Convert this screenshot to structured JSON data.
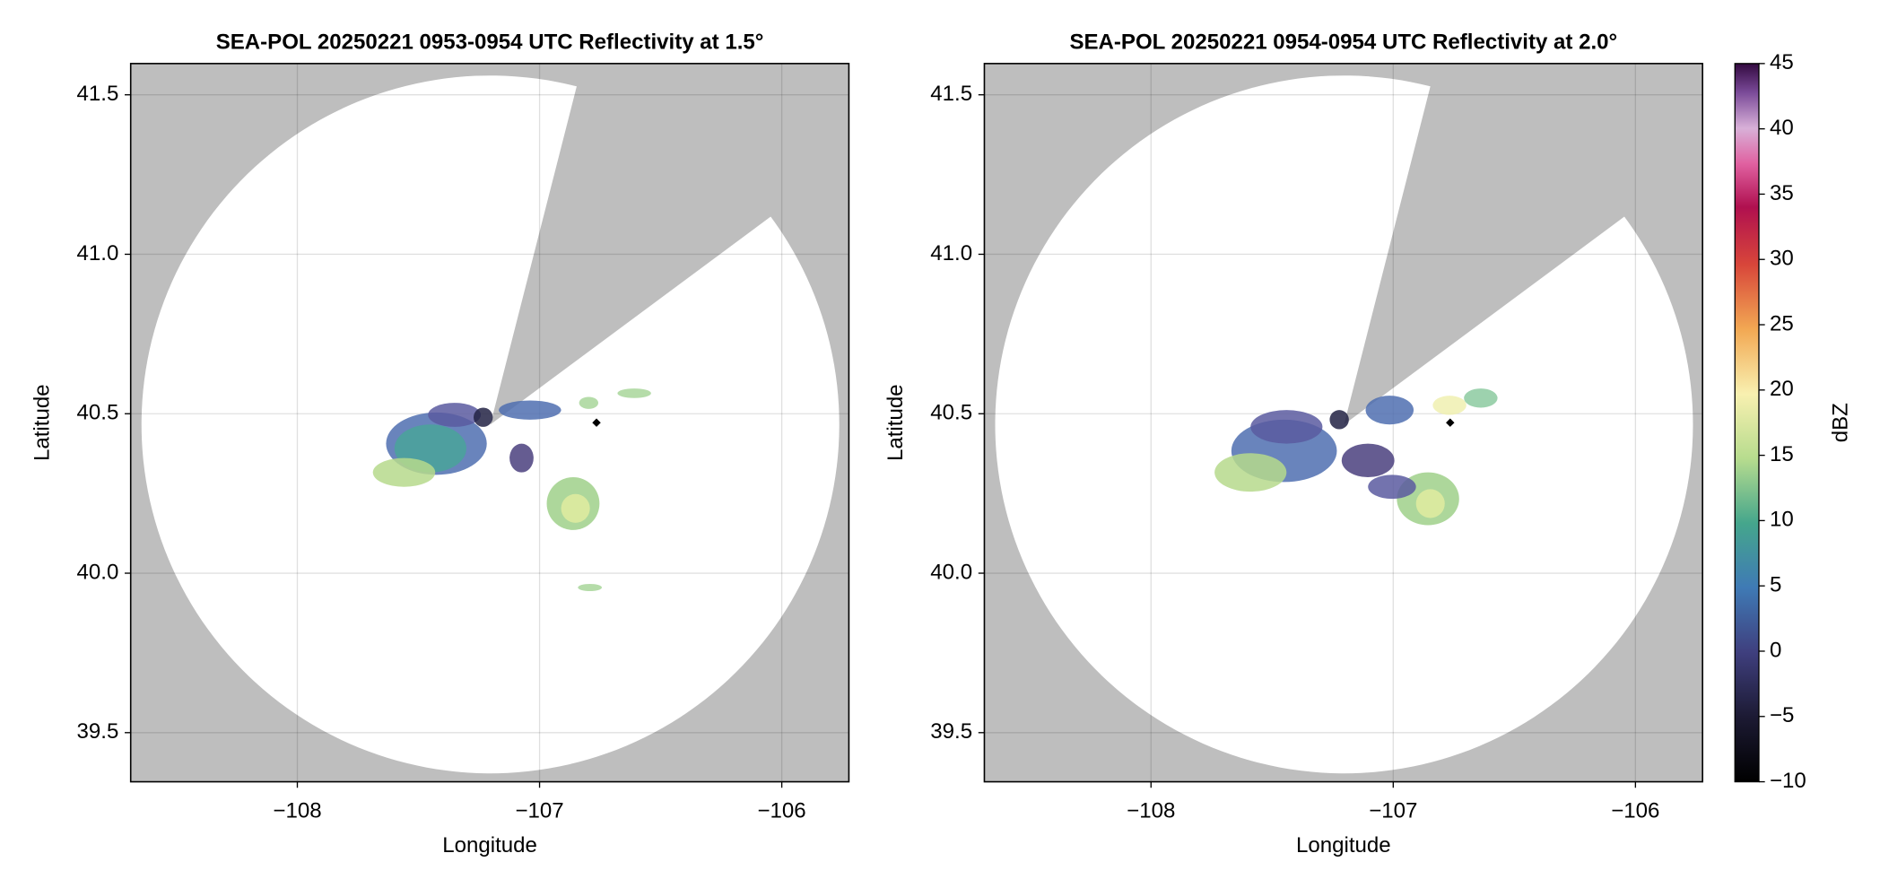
{
  "chart_data": [
    {
      "type": "radar-map",
      "title": "SEA-POL 20250221 0953-0954 UTC Reflectivity at 1.5°",
      "xlabel": "Longitude",
      "ylabel": "Latitude",
      "xlim": [
        -108.688,
        -105.723
      ],
      "ylim": [
        39.346,
        41.598
      ],
      "xticks": [
        {
          "value": -108,
          "label": "−108"
        },
        {
          "value": -107,
          "label": "−107"
        },
        {
          "value": -106,
          "label": "−106"
        }
      ],
      "yticks": [
        39.5,
        {
          "value": 40,
          "label": "40.0"
        },
        40.5,
        {
          "value": 41,
          "label": "41.0"
        },
        41.5
      ],
      "grid": true
    },
    {
      "type": "radar-map",
      "title": "SEA-POL 20250221 0954-0954 UTC Reflectivity at 2.0°",
      "xlabel": "Longitude",
      "ylabel": "Latitude",
      "xlim": [
        -108.688,
        -105.723
      ],
      "ylim": [
        39.346,
        41.598
      ],
      "xticks": [
        {
          "value": -108,
          "label": "−108"
        },
        {
          "value": -107,
          "label": "−107"
        },
        {
          "value": -106,
          "label": "−106"
        }
      ],
      "yticks": [
        39.5,
        {
          "value": 40,
          "label": "40.0"
        },
        40.5,
        {
          "value": 41,
          "label": "41.0"
        },
        41.5
      ],
      "grid": true,
      "colorbar": {
        "label": "dBZ",
        "lim": [
          -10,
          45
        ],
        "ticks": [
          {
            "value": -10,
            "label": "−10"
          },
          {
            "value": -5,
            "label": "−5"
          },
          0,
          5,
          10,
          15,
          20,
          25,
          30,
          35,
          40,
          45
        ]
      }
    }
  ]
}
